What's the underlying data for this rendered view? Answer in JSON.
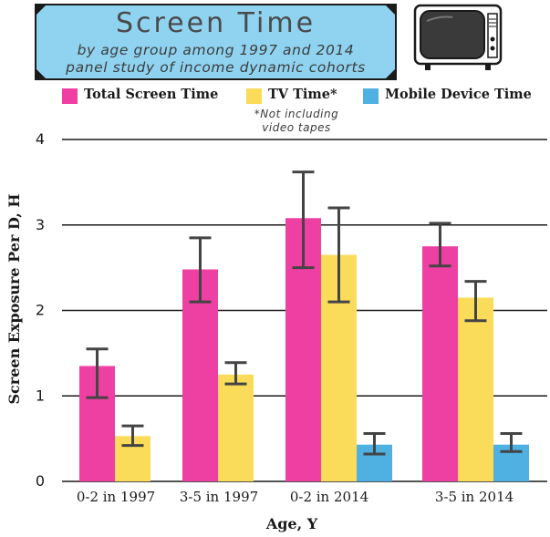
{
  "header": {
    "title": "Screen Time",
    "subtitle": "by age group among 1997 and 2014\npanel study of income dynamic cohorts"
  },
  "footnote": "*Not including\nvideo tapes",
  "legend": [
    {
      "label": "Total Screen Time",
      "color": "#ee3fa3"
    },
    {
      "label": "TV Time*",
      "color": "#fbdb5a"
    },
    {
      "label": "Mobile Device Time",
      "color": "#4fb0e2"
    }
  ],
  "icons": [
    "television-icon"
  ],
  "chart_data": {
    "type": "bar",
    "xlabel": "Age, Y",
    "ylabel": "Screen Exposure Per D, H",
    "ylim": [
      0,
      4
    ],
    "yticks": [
      "0",
      "1",
      "2",
      "3",
      "4"
    ],
    "grid": true,
    "legend_position": "top",
    "categories": [
      "0-2 in 1997",
      "3-5 in 1997",
      "0-2 in 2014",
      "3-5 in 2014"
    ],
    "series": [
      {
        "name": "Total Screen Time",
        "color": "#ee3fa3",
        "values": [
          1.35,
          2.48,
          3.08,
          2.75
        ],
        "error_low": [
          0.98,
          2.1,
          2.5,
          2.52
        ],
        "error_high": [
          1.55,
          2.85,
          3.62,
          3.02
        ]
      },
      {
        "name": "TV Time*",
        "color": "#fbdb5a",
        "values": [
          0.53,
          1.25,
          2.65,
          2.15
        ],
        "error_low": [
          0.42,
          1.14,
          2.1,
          1.88
        ],
        "error_high": [
          0.65,
          1.39,
          3.2,
          2.34
        ]
      },
      {
        "name": "Mobile Device Time",
        "color": "#4fb0e2",
        "values": [
          null,
          null,
          0.43,
          0.43
        ],
        "error_low": [
          null,
          null,
          0.32,
          0.35
        ],
        "error_high": [
          null,
          null,
          0.56,
          0.56
        ]
      }
    ]
  }
}
